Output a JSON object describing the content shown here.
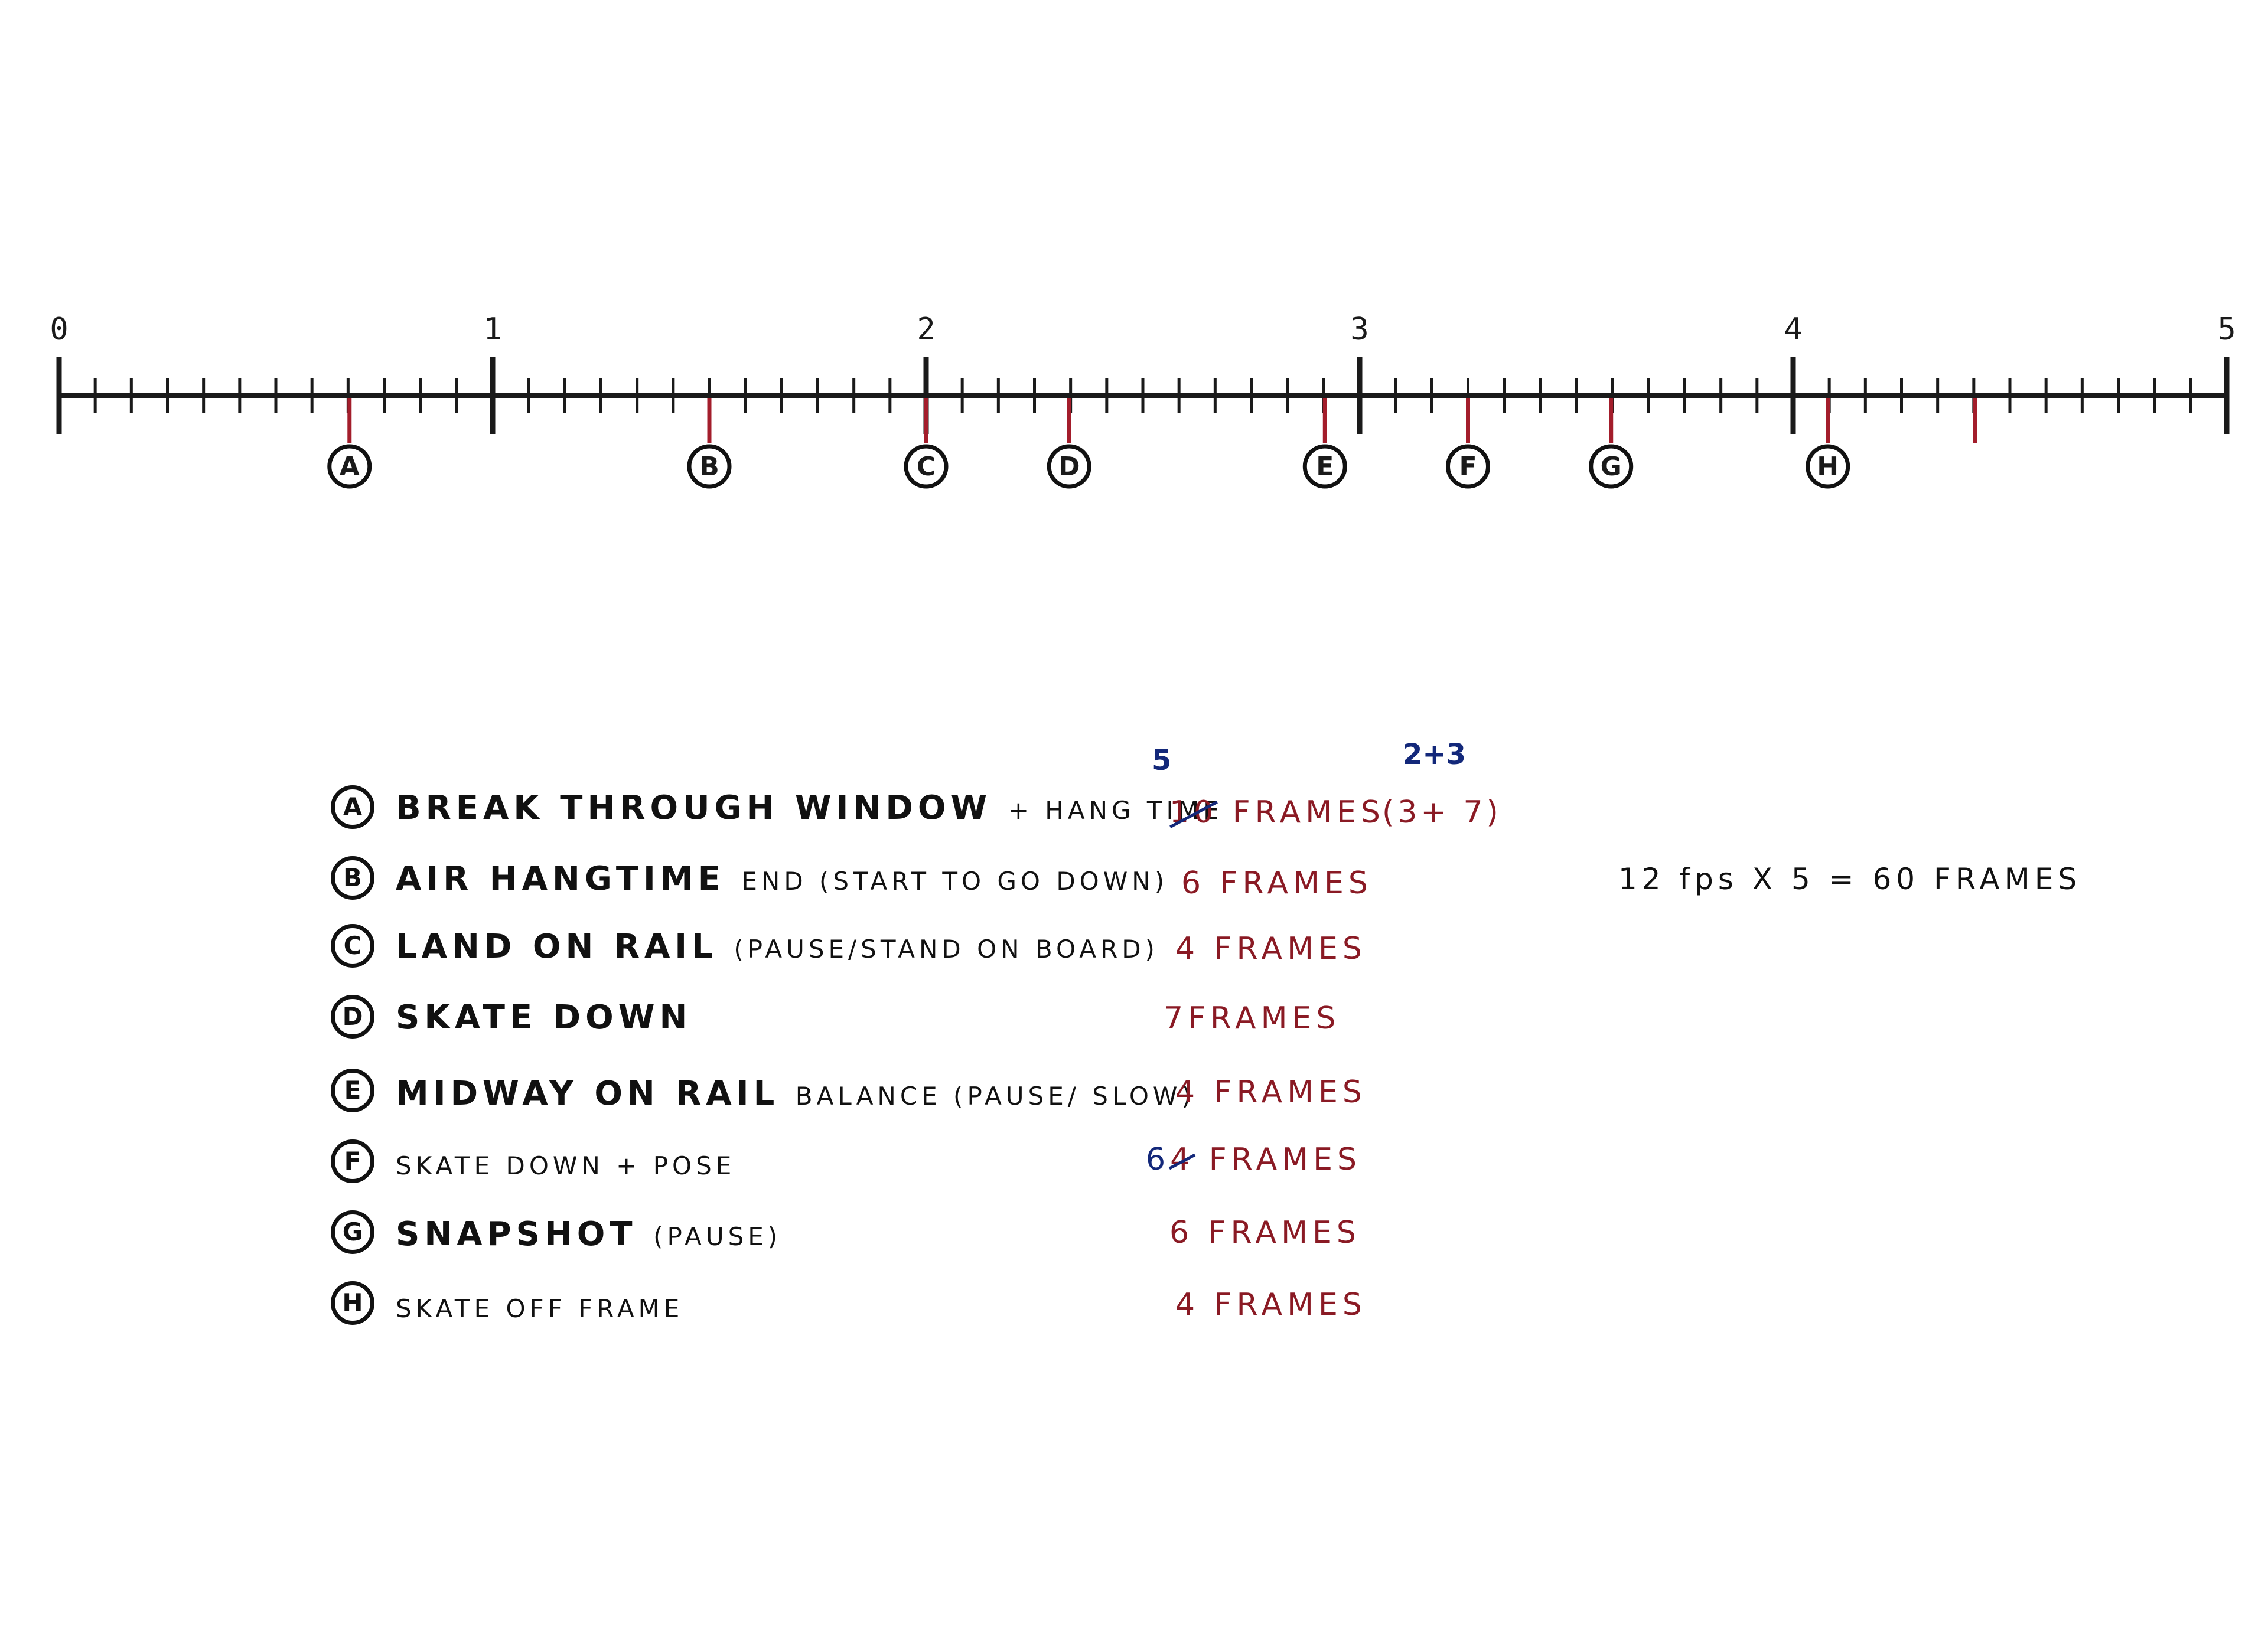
{
  "timeline": {
    "numbers": [
      "0",
      "1",
      "2",
      "3",
      "4",
      "5"
    ],
    "seconds": 5,
    "ticks_per_second": 12,
    "red_ticks": [
      0.67,
      1.5,
      2.0,
      2.33,
      2.92,
      3.25,
      3.58,
      4.08,
      4.42
    ],
    "markers": [
      {
        "letter": "A",
        "position": 0.67
      },
      {
        "letter": "B",
        "position": 1.5
      },
      {
        "letter": "C",
        "position": 2.0
      },
      {
        "letter": "D",
        "position": 2.33
      },
      {
        "letter": "E",
        "position": 2.92
      },
      {
        "letter": "F",
        "position": 3.25
      },
      {
        "letter": "G",
        "position": 3.58
      },
      {
        "letter": "H",
        "position": 4.08
      }
    ]
  },
  "list": [
    {
      "letter": "A",
      "desc_main": "BREAK THROUGH WINDOW",
      "desc_small": "+ HANG TIME",
      "frames_old": "10",
      "frames_new": "5",
      "frames_label": "FRAMES",
      "breakdown": "(3+ 7)",
      "breakdown_correction": "2+3"
    },
    {
      "letter": "B",
      "desc_main": "AIR HANGTIME",
      "desc_small": "END (START TO GO DOWN)",
      "frames": "6",
      "frames_label": "FRAMES"
    },
    {
      "letter": "C",
      "desc_main": "LAND ON RAIL",
      "desc_small": "(PAUSE/STAND ON BOARD)",
      "frames": "4",
      "frames_label": "FRAMES"
    },
    {
      "letter": "D",
      "desc_main": "SKATE DOWN",
      "desc_small": "",
      "frames": "7",
      "frames_label": "FRAMES"
    },
    {
      "letter": "E",
      "desc_main": "MIDWAY ON RAIL",
      "desc_small": "BALANCE (PAUSE/ SLOW)",
      "frames": "4",
      "frames_label": "FRAMES"
    },
    {
      "letter": "F",
      "desc_main": "",
      "desc_small": "SKATE DOWN + POSE",
      "frames_old": "4",
      "frames_new": "6",
      "frames_label": "FRAMES"
    },
    {
      "letter": "G",
      "desc_main": "SNAPSHOT",
      "desc_small": "(PAUSE)",
      "frames": "6",
      "frames_label": "FRAMES"
    },
    {
      "letter": "H",
      "desc_main": "",
      "desc_small": "SKATE OFF FRAME",
      "frames": "4",
      "frames_label": "FRAMES"
    }
  ],
  "calc": "12 fps X 5 = 60 FRAMES"
}
